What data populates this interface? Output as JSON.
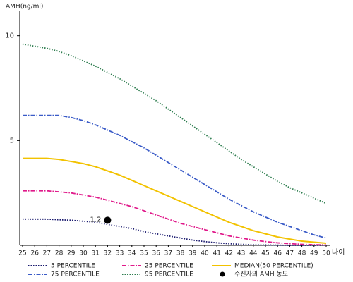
{
  "chart_data": {
    "type": "line",
    "y_label": "AMH(ng/ml)",
    "x_label": "나이",
    "x": [
      25,
      26,
      27,
      28,
      29,
      30,
      31,
      32,
      33,
      34,
      35,
      36,
      37,
      38,
      39,
      40,
      41,
      42,
      43,
      44,
      45,
      46,
      47,
      48,
      49,
      50
    ],
    "xlim": [
      25,
      50
    ],
    "xticks": [
      25,
      26,
      27,
      28,
      29,
      30,
      31,
      32,
      33,
      34,
      35,
      36,
      37,
      38,
      39,
      40,
      41,
      42,
      43,
      44,
      45,
      46,
      47,
      48,
      49,
      50
    ],
    "ylim": [
      0,
      11.2
    ],
    "yticks": [
      5,
      10
    ],
    "series": [
      {
        "name": "5 PERCENTILE",
        "color": "#1a1a6e",
        "line_style": "dotted",
        "values": [
          1.25,
          1.25,
          1.25,
          1.22,
          1.2,
          1.15,
          1.1,
          1.0,
          0.9,
          0.8,
          0.65,
          0.55,
          0.45,
          0.35,
          0.25,
          0.18,
          0.12,
          0.08,
          0.05,
          0.03,
          0.02,
          0.01,
          0,
          0,
          0,
          0
        ]
      },
      {
        "name": "25 PERCENTILE",
        "color": "#e0198a",
        "line_style": "dashdot",
        "values": [
          2.6,
          2.6,
          2.6,
          2.55,
          2.5,
          2.4,
          2.3,
          2.15,
          2.0,
          1.85,
          1.65,
          1.45,
          1.25,
          1.05,
          0.9,
          0.75,
          0.6,
          0.45,
          0.35,
          0.25,
          0.18,
          0.12,
          0.08,
          0.05,
          0.03,
          0.02
        ]
      },
      {
        "name": "MEDIAN(50 PERCENTILE)",
        "color": "#f2c200",
        "line_style": "solid",
        "values": [
          4.15,
          4.15,
          4.15,
          4.1,
          4.0,
          3.9,
          3.75,
          3.55,
          3.35,
          3.1,
          2.85,
          2.6,
          2.35,
          2.1,
          1.85,
          1.6,
          1.35,
          1.1,
          0.9,
          0.7,
          0.55,
          0.4,
          0.3,
          0.2,
          0.15,
          0.1
        ]
      },
      {
        "name": "75 PERCENTILE",
        "color": "#3a5bc7",
        "line_style": "dashdot",
        "values": [
          6.2,
          6.2,
          6.2,
          6.2,
          6.1,
          5.95,
          5.75,
          5.5,
          5.25,
          4.95,
          4.65,
          4.3,
          3.95,
          3.6,
          3.25,
          2.9,
          2.55,
          2.2,
          1.9,
          1.6,
          1.35,
          1.1,
          0.9,
          0.7,
          0.5,
          0.35
        ]
      },
      {
        "name": "95 PERCENTILE",
        "color": "#2e7d4f",
        "line_style": "dotted",
        "values": [
          9.6,
          9.5,
          9.4,
          9.25,
          9.05,
          8.8,
          8.55,
          8.25,
          7.95,
          7.6,
          7.25,
          6.9,
          6.5,
          6.1,
          5.7,
          5.3,
          4.9,
          4.5,
          4.1,
          3.75,
          3.4,
          3.05,
          2.75,
          2.5,
          2.25,
          2.0
        ]
      }
    ],
    "marker": {
      "name": "수진자의 AMH 농도",
      "color": "#000000",
      "x": 32,
      "y": 1.2
    }
  }
}
